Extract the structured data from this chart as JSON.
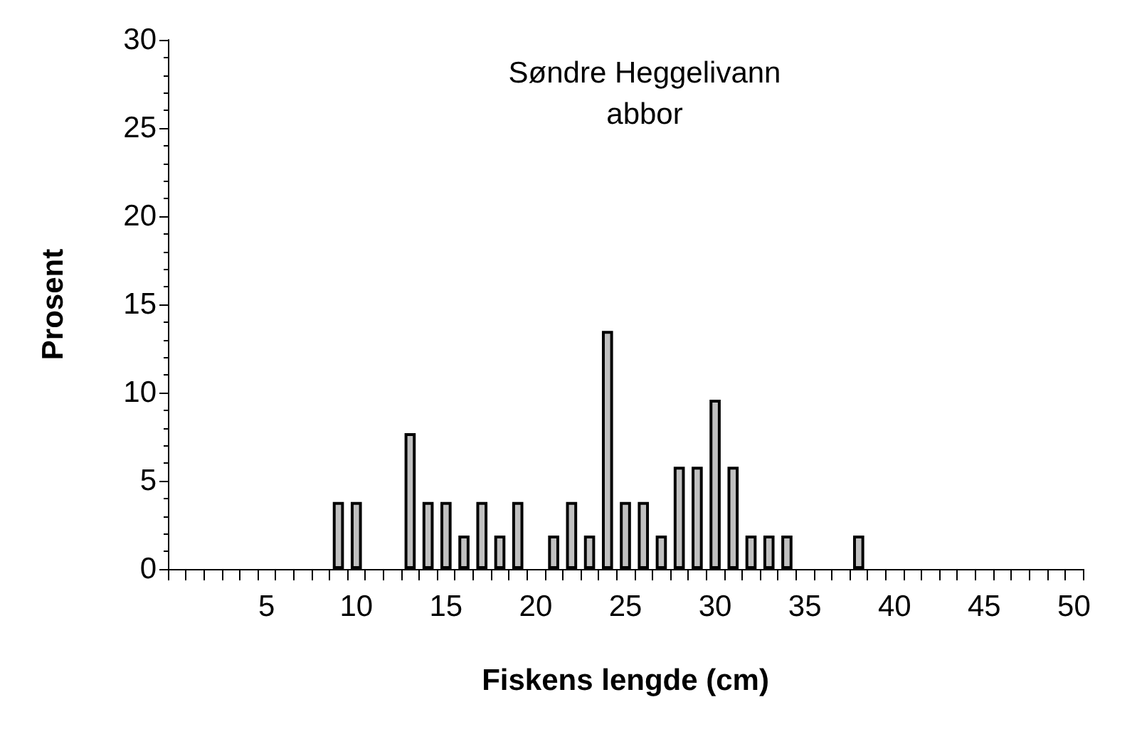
{
  "chart_data": {
    "type": "bar",
    "title": "Søndre Heggelivann",
    "subtitle": "abbor",
    "xlabel": "Fiskens lengde (cm)",
    "ylabel": "Prosent",
    "categories": [
      null,
      null,
      null,
      null,
      null,
      "5",
      null,
      null,
      null,
      null,
      "10",
      null,
      null,
      null,
      null,
      "15",
      null,
      null,
      null,
      null,
      "20",
      null,
      null,
      null,
      null,
      "25",
      null,
      null,
      null,
      null,
      "30",
      null,
      null,
      null,
      null,
      "35",
      null,
      null,
      null,
      null,
      "40",
      null,
      null,
      null,
      null,
      "45",
      null,
      null,
      null,
      null,
      "50"
    ],
    "values": [
      0,
      0,
      0,
      0,
      0,
      0,
      0,
      0,
      0,
      3.8,
      3.8,
      0,
      0,
      7.7,
      3.8,
      3.8,
      1.9,
      3.8,
      1.9,
      3.8,
      0,
      1.9,
      3.8,
      1.9,
      13.5,
      3.8,
      3.8,
      1.9,
      5.8,
      5.8,
      9.6,
      5.8,
      1.9,
      1.9,
      1.9,
      0,
      0,
      0,
      1.9,
      0,
      0,
      0,
      0,
      0,
      0,
      0,
      0,
      0,
      0,
      0,
      0
    ],
    "color": "#c0c0c0",
    "ylim": [
      0,
      30
    ],
    "yticks": [
      0,
      5,
      10,
      15,
      20,
      25,
      30
    ],
    "grid": false
  }
}
